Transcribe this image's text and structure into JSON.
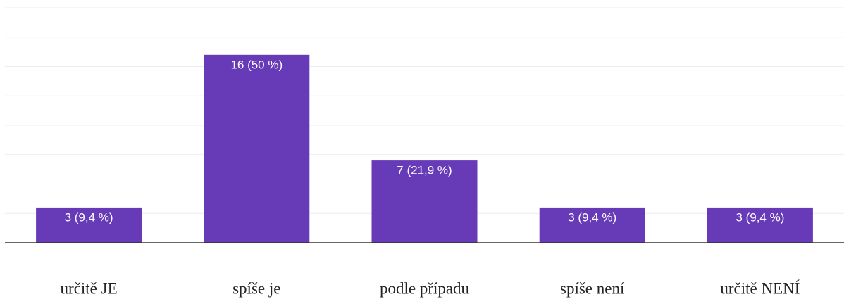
{
  "chart_data": {
    "type": "bar",
    "categories": [
      "určitě JE",
      "spíše je",
      "podle případu",
      "spíše není",
      "určitě NENÍ"
    ],
    "values": [
      3,
      16,
      7,
      3,
      3
    ],
    "value_labels": [
      "3 (9,4 %)",
      "16 (50 %)",
      "7 (21,9 %)",
      "3 (9,4 %)",
      "3 (9,4 %)"
    ],
    "color": "#673ab7",
    "ylim": [
      0,
      20
    ],
    "yticks": [
      0,
      2.5,
      5,
      7.5,
      10,
      12.5,
      15,
      17.5,
      20
    ],
    "grid": true
  }
}
